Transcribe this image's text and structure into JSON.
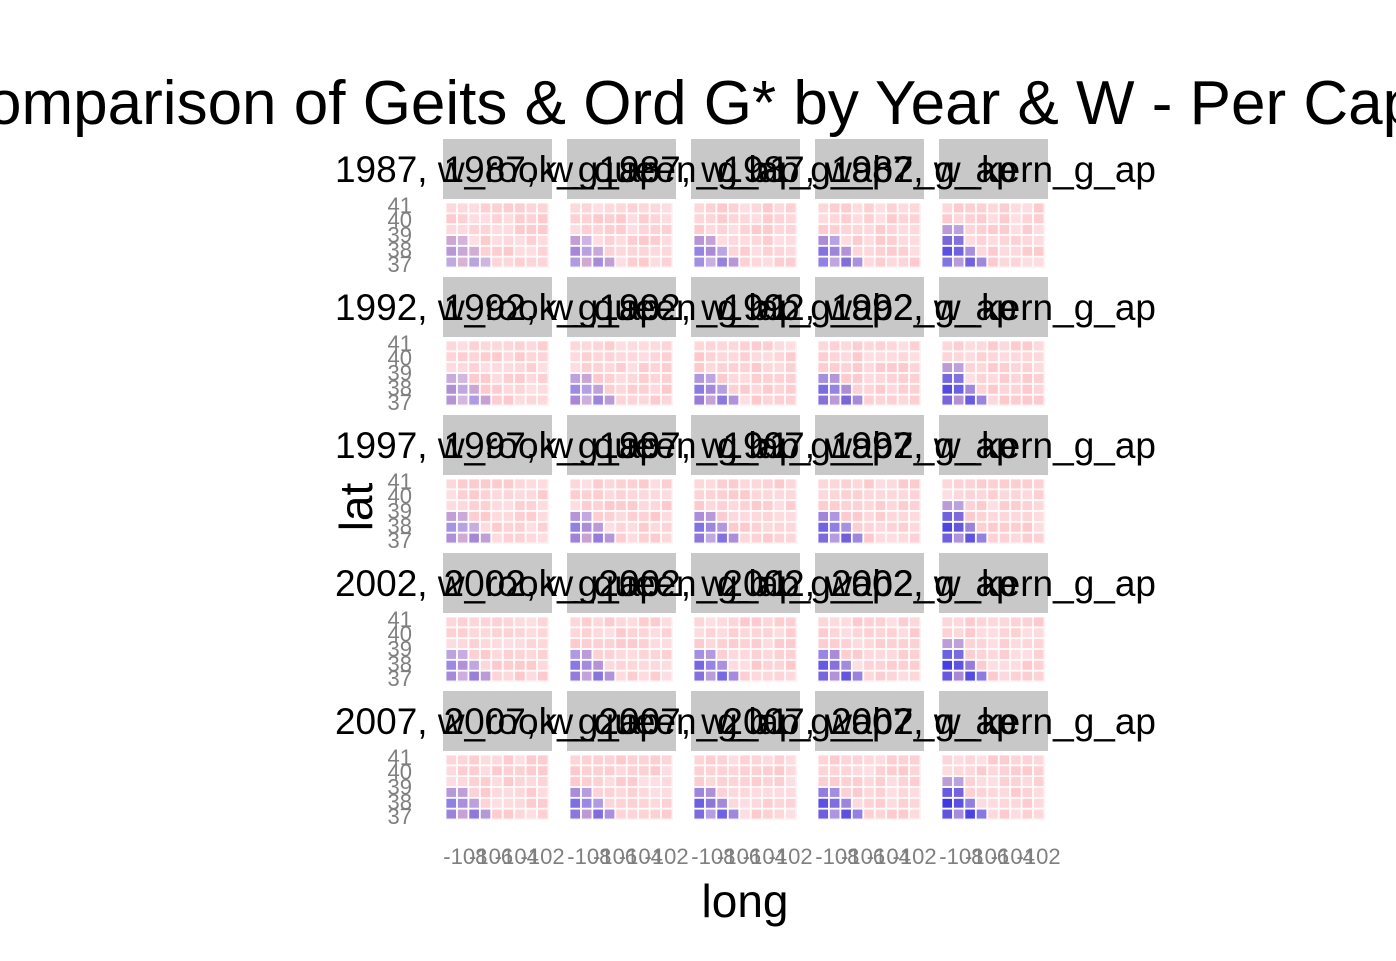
{
  "chart_data": {
    "type": "heatmap",
    "subtype": "faceted-choropleth-map",
    "title": "Comparison of Geits & Ord G* by Year & W - Per Capita A",
    "xlabel": "long",
    "ylabel": "lat",
    "years": [
      "1987",
      "1992",
      "1997",
      "2002",
      "2007"
    ],
    "weights": [
      "w_rook",
      "w_queen",
      "w_b1",
      "w_b2",
      "w_kern"
    ],
    "strip_suffix": "_g_ap",
    "strip_separator": ", ",
    "xlim": [
      -109.5,
      -101.5
    ],
    "ylim": [
      36.8,
      41.2
    ],
    "x_ticks": [
      "-108",
      "-106",
      "-104",
      "-102"
    ],
    "y_ticks": [
      "37",
      "38",
      "39",
      "40",
      "41"
    ],
    "colors": {
      "low": "#2323e6",
      "high": "#ff3333",
      "border": "#ffffff",
      "strip": "#c8c8c8",
      "panel_bg": "#ffffff"
    },
    "layout_note": "grid of 5 year rows by 5 weight columns"
  }
}
